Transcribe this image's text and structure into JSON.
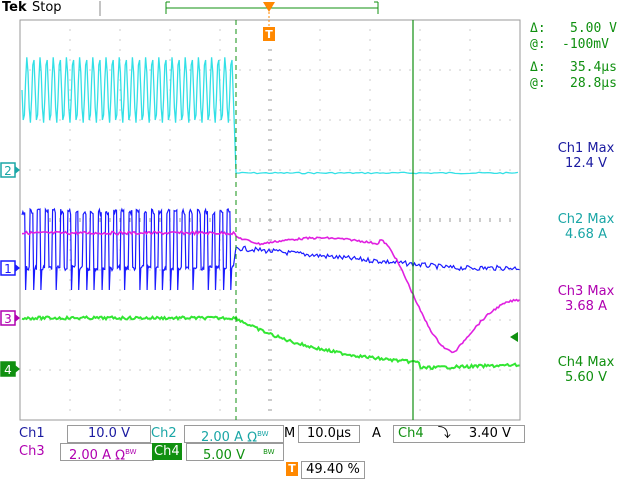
{
  "header": {
    "brand": "Tek",
    "status": "Stop",
    "trigger_marker": "T"
  },
  "cursors": {
    "v_delta_label": "Δ:",
    "v_delta": "5.00 V",
    "v_at_label": "@:",
    "v_at": "-100mV",
    "t_delta_label": "Δ:",
    "t_delta": "35.4µs",
    "t_at_label": "@:",
    "t_at": "28.8µs"
  },
  "measurements": [
    {
      "label": "Ch1 Max",
      "value": "12.4 V",
      "color": "#1a1aa0"
    },
    {
      "label": "Ch2 Max",
      "value": "4.68 A",
      "color": "#1aa6a6"
    },
    {
      "label": "Ch3 Max",
      "value": "3.68 A",
      "color": "#b000b0"
    },
    {
      "label": "Ch4 Max",
      "value": "5.60 V",
      "color": "#109010"
    }
  ],
  "channel_markers": [
    "1",
    "2",
    "3",
    "4"
  ],
  "bottom": {
    "ch1_label": "Ch1",
    "ch1_scale": "10.0 V",
    "ch2_label": "Ch2",
    "ch2_scale": "2.00 A",
    "ch2_suffix": "Ω",
    "bw_mark": "BW",
    "ch3_label": "Ch3",
    "ch3_scale": "2.00 A",
    "ch3_suffix": "Ω",
    "ch4_label": "Ch4",
    "ch4_scale": "5.00 V",
    "timebase_label": "M",
    "timebase": "10.0µs",
    "trig_mode": "A",
    "trig_source": "Ch4",
    "trig_slope": "⤵",
    "trig_level": "3.40 V",
    "trig_pos_marker": "T",
    "trig_pos": "49.40 %"
  },
  "colors": {
    "ch1": "#1a1aff",
    "ch2": "#33e0e6",
    "ch3": "#e020e0",
    "ch4": "#33e633",
    "cursor_line": "#109010",
    "trigger": "#ff8800"
  }
}
